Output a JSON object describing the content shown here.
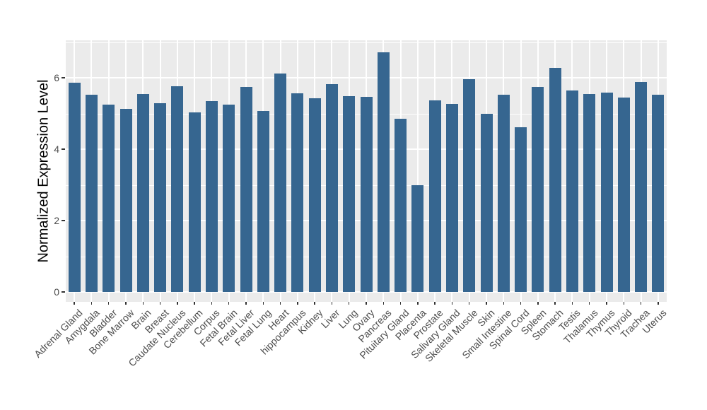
{
  "chart_data": {
    "type": "bar",
    "title": "",
    "xlabel": "",
    "ylabel": "Normalized Expression Level",
    "categories": [
      "Adrenal Gland",
      "Amygdala",
      "Bladder",
      "Bone Marrow",
      "Brain",
      "Breast",
      "Caudate Nucleus",
      "Cerebellum",
      "Corpus",
      "Fetal Brain",
      "Fetal Liver",
      "Fetal Lung",
      "Heart",
      "hippocampus",
      "Kidney",
      "Liver",
      "Lung",
      "Ovary",
      "Pancreas",
      "Pituitary Gland",
      "Placenta",
      "Prostate",
      "Salivary Gland",
      "Skeletal Muscle",
      "Skin",
      "Small Intestine",
      "Spinal Cord",
      "Spleen",
      "Stomach",
      "Testis",
      "Thalamus",
      "Thymus",
      "Thyroid",
      "Trachea",
      "Uterus"
    ],
    "values": [
      5.87,
      5.53,
      5.25,
      5.12,
      5.55,
      5.29,
      5.77,
      5.02,
      5.35,
      5.25,
      5.74,
      5.07,
      6.12,
      5.57,
      5.43,
      5.82,
      5.49,
      5.46,
      6.71,
      4.85,
      3.0,
      5.36,
      5.27,
      5.97,
      4.99,
      5.53,
      4.61,
      5.75,
      6.28,
      5.64,
      5.55,
      5.58,
      5.45,
      5.88,
      5.53
    ],
    "ylim": [
      -0.28,
      7.05
    ],
    "yticks_major": [
      0,
      2,
      4,
      6
    ],
    "yticks_minor": [
      1,
      3,
      5,
      7
    ],
    "grid": true,
    "legend": false,
    "bar_width_fraction": 0.7,
    "colors": {
      "bar": "#366690",
      "panel_background": "#EBEBEB",
      "gridline": "#FFFFFF",
      "tick_text": "#4D4D4D",
      "axis_title": "#000000",
      "figure_background": "#FFFFFF"
    }
  }
}
